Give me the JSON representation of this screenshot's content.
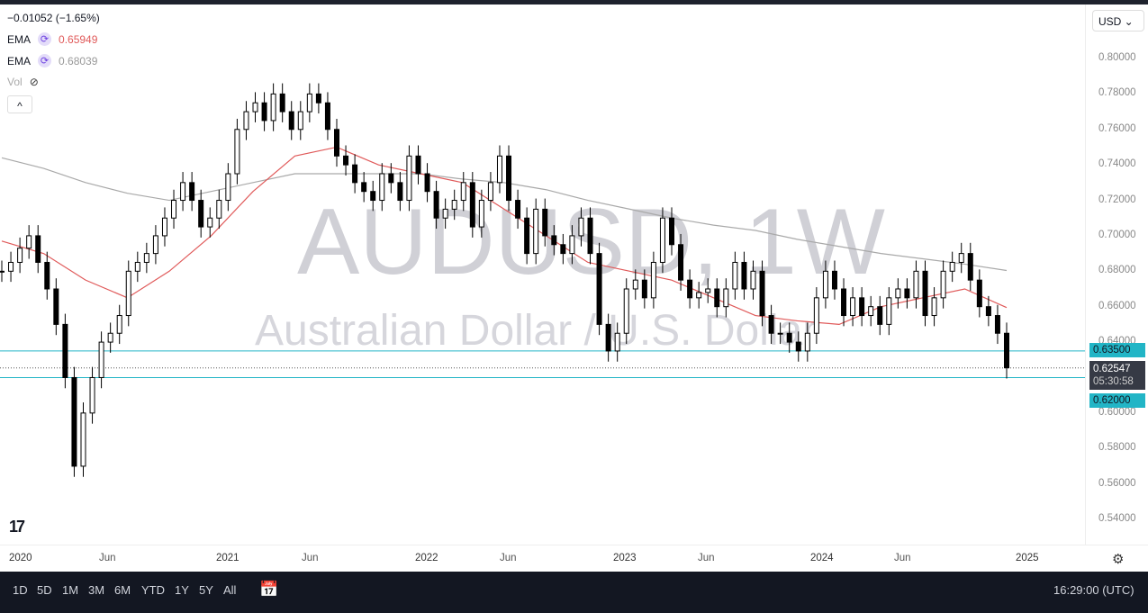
{
  "symbol_title": "AUDUSD, 1W",
  "symbol_desc": "Australian Dollar / U.S. Dollar",
  "legend": {
    "change": "−0.01052 (−1.65%)",
    "ema1_label": "EMA",
    "ema1_value": "0.65949",
    "ema2_label": "EMA",
    "ema2_value": "0.68039",
    "vol_label": "Vol",
    "collapse": "^"
  },
  "currency": "USD ⌄",
  "colors": {
    "up": "#000000",
    "down": "#000000",
    "ema_fast": "#e05a5a",
    "ema_slow": "#a9a9a9",
    "level_line": "#22b5c6",
    "tag_bg": "#22b5c6",
    "price_tag_bg": "#363a45"
  },
  "price_axis": {
    "labels": [
      "0.80000",
      "0.78000",
      "0.76000",
      "0.74000",
      "0.72000",
      "0.70000",
      "0.68000",
      "0.66000",
      "0.64000",
      "0.60000",
      "0.58000",
      "0.56000",
      "0.54000"
    ],
    "ticks": [
      0.8,
      0.78,
      0.76,
      0.74,
      0.72,
      0.7,
      0.68,
      0.66,
      0.64,
      0.6,
      0.58,
      0.56,
      0.54
    ],
    "range": [
      0.54,
      0.8
    ]
  },
  "levels": {
    "upper": {
      "value": 0.635,
      "label": "0.63500"
    },
    "lower": {
      "value": 0.62,
      "label": "0.62000"
    },
    "last": {
      "value": 0.62547,
      "label": "0.62547",
      "countdown": "05:30:58"
    }
  },
  "time_axis": [
    "2020",
    "Jun",
    "2021",
    "Jun",
    "2022",
    "Jun",
    "2023",
    "Jun",
    "2024",
    "Jun",
    "2025"
  ],
  "chart_data": {
    "type": "candlestick",
    "period": "2019-12 to 2024-12",
    "closes": [
      0.68,
      0.685,
      0.693,
      0.7,
      0.685,
      0.67,
      0.65,
      0.62,
      0.57,
      0.6,
      0.62,
      0.64,
      0.645,
      0.655,
      0.68,
      0.685,
      0.69,
      0.7,
      0.71,
      0.72,
      0.73,
      0.72,
      0.705,
      0.71,
      0.72,
      0.735,
      0.76,
      0.77,
      0.775,
      0.765,
      0.78,
      0.77,
      0.76,
      0.77,
      0.78,
      0.775,
      0.76,
      0.745,
      0.74,
      0.73,
      0.725,
      0.72,
      0.735,
      0.73,
      0.72,
      0.745,
      0.735,
      0.725,
      0.71,
      0.715,
      0.72,
      0.73,
      0.705,
      0.72,
      0.73,
      0.745,
      0.72,
      0.71,
      0.69,
      0.715,
      0.7,
      0.695,
      0.69,
      0.7,
      0.71,
      0.69,
      0.65,
      0.635,
      0.645,
      0.67,
      0.675,
      0.665,
      0.685,
      0.71,
      0.695,
      0.675,
      0.665,
      0.668,
      0.67,
      0.66,
      0.67,
      0.685,
      0.67,
      0.68,
      0.655,
      0.645,
      0.645,
      0.64,
      0.635,
      0.645,
      0.665,
      0.68,
      0.67,
      0.655,
      0.665,
      0.655,
      0.66,
      0.65,
      0.665,
      0.67,
      0.665,
      0.68,
      0.655,
      0.665,
      0.68,
      0.685,
      0.69,
      0.675,
      0.66,
      0.655,
      0.645,
      0.6255
    ],
    "ema_fast": [
      0.697,
      0.69,
      0.675,
      0.665,
      0.68,
      0.7,
      0.725,
      0.745,
      0.75,
      0.74,
      0.735,
      0.73,
      0.715,
      0.7,
      0.685,
      0.68,
      0.675,
      0.665,
      0.655,
      0.652,
      0.65,
      0.66,
      0.665,
      0.67,
      0.6595
    ],
    "ema_slow": [
      0.744,
      0.738,
      0.73,
      0.724,
      0.72,
      0.725,
      0.73,
      0.735,
      0.735,
      0.735,
      0.735,
      0.732,
      0.73,
      0.726,
      0.72,
      0.715,
      0.71,
      0.706,
      0.703,
      0.698,
      0.694,
      0.69,
      0.687,
      0.684,
      0.6804
    ]
  },
  "toolbar": {
    "ranges": [
      "1D",
      "5D",
      "1M",
      "3M",
      "6M",
      "YTD",
      "1Y",
      "5Y",
      "All"
    ],
    "time": "16:29:00 (UTC)"
  }
}
